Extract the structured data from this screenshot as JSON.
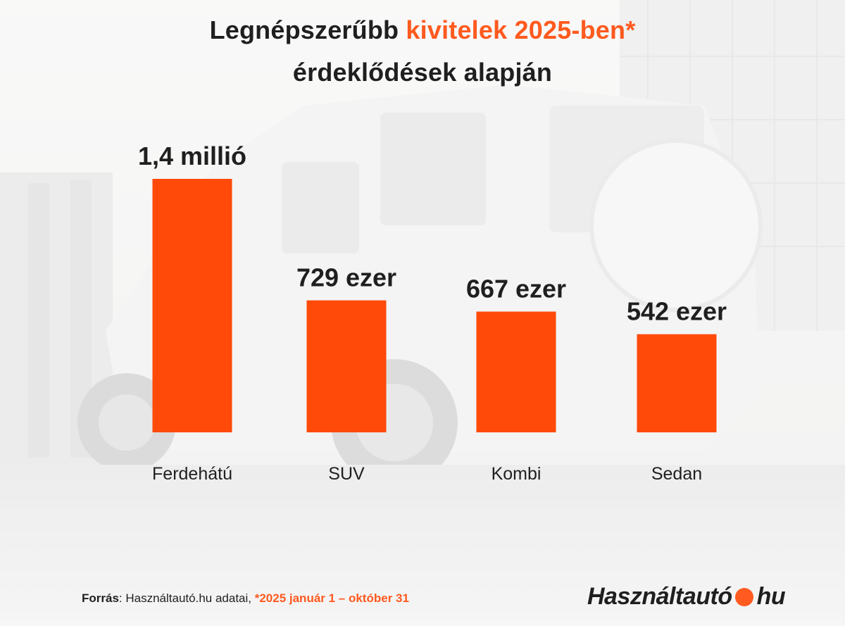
{
  "title": {
    "part1": "Legnépszerűbb ",
    "part2_highlight": "kivitelek 2025-ben*",
    "line2": "érdeklődések alapján"
  },
  "chart_data": {
    "type": "bar",
    "categories": [
      "Ferdehátú",
      "SUV",
      "Kombi",
      "Sedan"
    ],
    "values": [
      1400000,
      729000,
      667000,
      542000
    ],
    "data_labels": [
      "1,4 millió",
      "729 ezer",
      "667 ezer",
      "542 ezer"
    ],
    "bar_color": "#ff4a0a",
    "grid": false,
    "legend": "none"
  },
  "footer": {
    "source_label": "Forrás",
    "source_text": ": Használtautó.hu adatai, ",
    "date_range": "*2025 január 1 – október 31"
  },
  "logo": {
    "left": "Használtautó",
    "right": "hu"
  },
  "colors": {
    "accent": "#ff5a1f",
    "text": "#1f1f1f"
  }
}
